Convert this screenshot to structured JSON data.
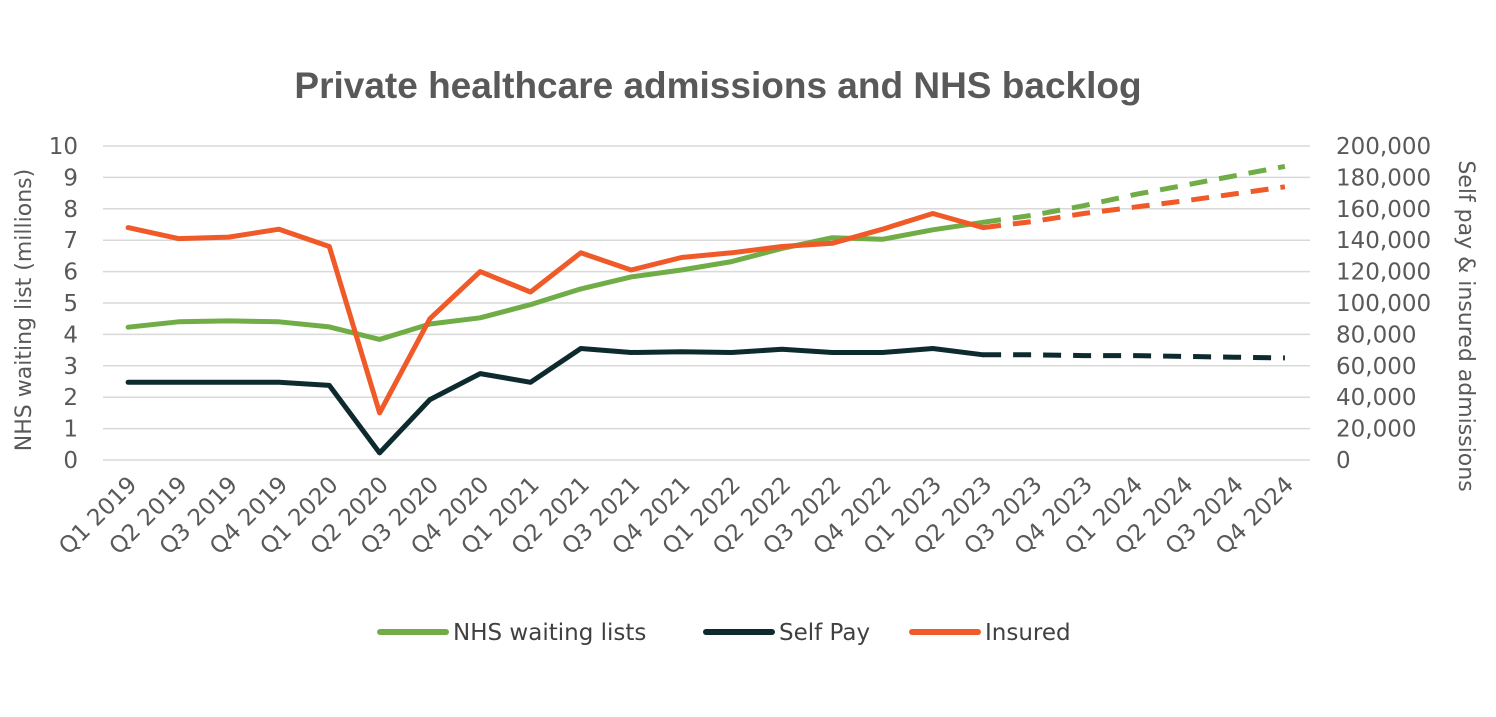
{
  "chart_data": {
    "type": "line",
    "title": "Private healthcare admissions and NHS backlog",
    "ylabel": "NHS waiting list (millions)",
    "y2label": "Self pay & insured admissions",
    "ylim": [
      0,
      10
    ],
    "y2lim": [
      0,
      200000
    ],
    "yticks": [
      "0",
      "1",
      "2",
      "3",
      "4",
      "5",
      "6",
      "7",
      "8",
      "9",
      "10"
    ],
    "y2ticks": [
      "0",
      "20,000",
      "40,000",
      "60,000",
      "80,000",
      "100,000",
      "120,000",
      "140,000",
      "160,000",
      "180,000",
      "200,000"
    ],
    "categories": [
      "Q1 2019",
      "Q2 2019",
      "Q3 2019",
      "Q4 2019",
      "Q1 2020",
      "Q2 2020",
      "Q3 2020",
      "Q4 2020",
      "Q1 2021",
      "Q2 2021",
      "Q3 2021",
      "Q4 2021",
      "Q1 2022",
      "Q2 2022",
      "Q3 2022",
      "Q4 2022",
      "Q1 2023",
      "Q2 2023",
      "Q3 2023",
      "Q4 2023",
      "Q1 2024",
      "Q2 2024",
      "Q3 2024",
      "Q4 2024"
    ],
    "forecast_start_index": 17,
    "legend_position": "bottom",
    "grid": true,
    "series": [
      {
        "name": "NHS waiting lists",
        "axis": "left",
        "color": "#70ad47",
        "values": [
          4.23,
          4.4,
          4.43,
          4.4,
          4.24,
          3.84,
          4.33,
          4.53,
          4.95,
          5.45,
          5.83,
          6.05,
          6.32,
          6.74,
          7.08,
          7.03,
          7.33,
          7.57,
          7.8,
          8.1,
          8.45,
          8.75,
          9.05,
          9.35
        ]
      },
      {
        "name": "Self Pay",
        "axis": "right",
        "color": "#0d2a2e",
        "values": [
          49500,
          49500,
          49500,
          49500,
          47500,
          4500,
          38500,
          55000,
          49500,
          71000,
          68500,
          69000,
          68500,
          70500,
          68500,
          68500,
          71000,
          67000,
          67000,
          66500,
          66500,
          66000,
          65500,
          65000
        ]
      },
      {
        "name": "Insured",
        "axis": "right",
        "color": "#f05a28",
        "values": [
          148000,
          141000,
          142000,
          147000,
          136000,
          30000,
          90000,
          120000,
          107000,
          132000,
          121000,
          129000,
          132000,
          136000,
          138000,
          147000,
          157000,
          148000,
          152000,
          157000,
          161000,
          165000,
          169500,
          174000
        ]
      }
    ]
  }
}
